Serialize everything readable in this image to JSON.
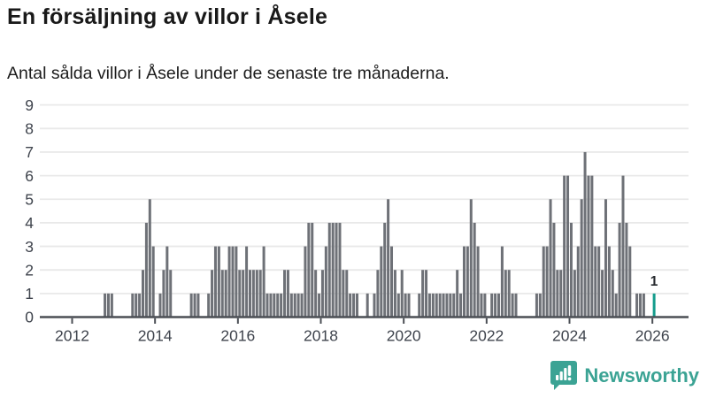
{
  "header": {
    "title": "En försäljning av villor i Åsele",
    "subtitle": "Antal sålda villor i Åsele under de senaste tre månaderna."
  },
  "footer": {
    "brand": "Newsworthy"
  },
  "colors": {
    "bar": "#6E7177",
    "highlight": "#149C8C",
    "brand": "#3BA394",
    "grid": "#E9E9E9",
    "axis": "#4B4F55",
    "tick_label": "#3F444D",
    "annotation": "#26292E"
  },
  "chart_data": {
    "type": "bar",
    "title": "En försäljning av villor i Åsele",
    "subtitle": "Antal sålda villor i Åsele under de senaste tre månaderna.",
    "ylabel": "",
    "xlabel": "",
    "ylim": [
      0,
      9
    ],
    "y_ticks": [
      0,
      1,
      2,
      3,
      4,
      5,
      6,
      7,
      8,
      9
    ],
    "x_tick_years": [
      2012,
      2014,
      2016,
      2018,
      2020,
      2022,
      2024,
      2026
    ],
    "grid": "horizontal",
    "legend": "none",
    "monthly": [
      {
        "year": 2011,
        "values": [
          0,
          0,
          0,
          0,
          0,
          0,
          0,
          0,
          0,
          0,
          0,
          0
        ]
      },
      {
        "year": 2012,
        "values": [
          0,
          0,
          0,
          0,
          0,
          0,
          0,
          0,
          0,
          1,
          1,
          1
        ]
      },
      {
        "year": 2013,
        "values": [
          0,
          0,
          0,
          0,
          0,
          1,
          1,
          1,
          2,
          4,
          5,
          3
        ]
      },
      {
        "year": 2014,
        "values": [
          0,
          1,
          2,
          3,
          2,
          0,
          0,
          0,
          0,
          0,
          1,
          1
        ]
      },
      {
        "year": 2015,
        "values": [
          1,
          0,
          0,
          1,
          2,
          3,
          3,
          2,
          2,
          3,
          3,
          3
        ]
      },
      {
        "year": 2016,
        "values": [
          2,
          2,
          3,
          2,
          2,
          2,
          2,
          3,
          1,
          1,
          1,
          1
        ]
      },
      {
        "year": 2017,
        "values": [
          1,
          2,
          2,
          1,
          1,
          1,
          1,
          3,
          4,
          4,
          2,
          1
        ]
      },
      {
        "year": 2018,
        "values": [
          2,
          3,
          4,
          4,
          4,
          4,
          2,
          2,
          1,
          1,
          1,
          0
        ]
      },
      {
        "year": 2019,
        "values": [
          0,
          1,
          0,
          1,
          2,
          3,
          4,
          5,
          3,
          2,
          1,
          2
        ]
      },
      {
        "year": 2020,
        "values": [
          1,
          1,
          0,
          0,
          1,
          2,
          2,
          1,
          1,
          1,
          1,
          1
        ]
      },
      {
        "year": 2021,
        "values": [
          1,
          1,
          1,
          2,
          1,
          3,
          3,
          5,
          4,
          3,
          1,
          1
        ]
      },
      {
        "year": 2022,
        "values": [
          0,
          1,
          1,
          1,
          3,
          2,
          2,
          1,
          1,
          0,
          0,
          0
        ]
      },
      {
        "year": 2023,
        "values": [
          0,
          0,
          1,
          1,
          3,
          3,
          5,
          4,
          2,
          2,
          6,
          6
        ]
      },
      {
        "year": 2024,
        "values": [
          4,
          2,
          3,
          5,
          7,
          6,
          6,
          3,
          3,
          2,
          5,
          3
        ]
      },
      {
        "year": 2025,
        "values": [
          2,
          1,
          4,
          6,
          4,
          3,
          0,
          1,
          1,
          1,
          0,
          0
        ]
      },
      {
        "year": 2026,
        "values": [
          1
        ]
      }
    ],
    "highlight": {
      "year": 2026,
      "month_index": 0,
      "value": 1,
      "label": "1"
    }
  }
}
